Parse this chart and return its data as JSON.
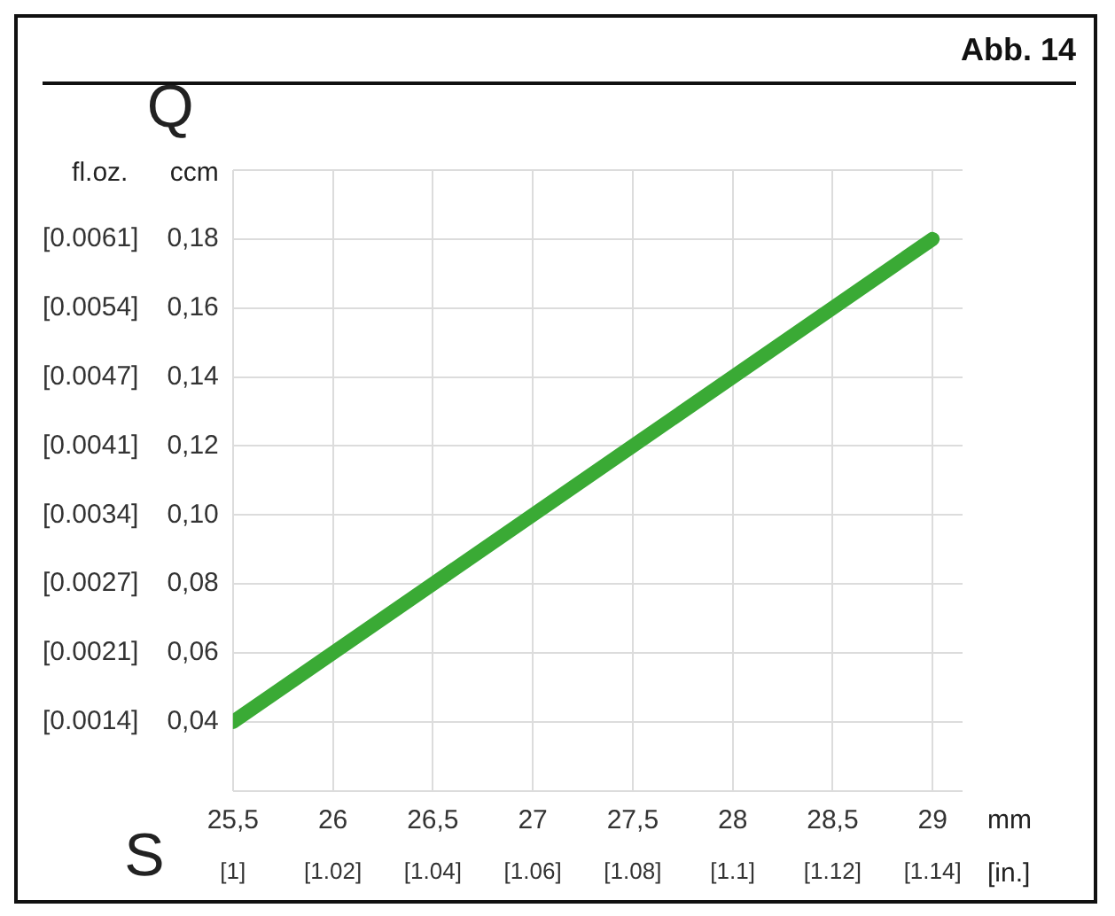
{
  "chart_data": {
    "type": "line",
    "title": "Abb. 14",
    "xlabel": "mm",
    "x2label": "[in.]",
    "ylabel": "ccm",
    "y2label": "fl.oz.",
    "annotations": [
      "Q",
      "S"
    ],
    "x": [
      25.5,
      29
    ],
    "series": [
      {
        "color": "#3aaa35",
        "values": [
          0.04,
          0.18
        ]
      }
    ],
    "xlim": [
      25.5,
      29.15
    ],
    "xticks": [
      {
        "value": 25.5,
        "label": "25,5"
      },
      26,
      {
        "value": 26.5,
        "label": "26,5"
      },
      27,
      {
        "value": 27.5,
        "label": "27,5"
      },
      28,
      {
        "value": 28.5,
        "label": "28,5"
      },
      29
    ],
    "x2lim": [
      1,
      1.146
    ],
    "x2ticks": [
      {
        "value": 1,
        "label": "[1]"
      },
      {
        "value": 1.02,
        "label": "[1.02]"
      },
      {
        "value": 1.04,
        "label": "[1.04]"
      },
      {
        "value": 1.06,
        "label": "[1.06]"
      },
      {
        "value": 1.08,
        "label": "[1.08]"
      },
      {
        "value": 1.1,
        "label": "[1.1]"
      },
      {
        "value": 1.12,
        "label": "[1.12]"
      },
      {
        "value": 1.14,
        "label": "[1.14]"
      }
    ],
    "ylim": [
      0.02,
      0.2
    ],
    "yticks": [
      {
        "value": 0.02,
        "label": null
      },
      {
        "value": 0.04,
        "label": "0,04"
      },
      {
        "value": 0.06,
        "label": "0,06"
      },
      {
        "value": 0.08,
        "label": "0,08"
      },
      {
        "value": 0.1,
        "label": "0,10"
      },
      {
        "value": 0.12,
        "label": "0,12"
      },
      {
        "value": 0.14,
        "label": "0,14"
      },
      {
        "value": 0.16,
        "label": "0,16"
      },
      {
        "value": 0.18,
        "label": "0,18"
      },
      {
        "value": 0.2,
        "label": null
      }
    ],
    "y2lim": [
      0.000722,
      0.006734
    ],
    "y2ticks": [
      {
        "value": 0.00139,
        "label": "[0.0014]"
      },
      {
        "value": 0.002058,
        "label": "[0.0021]"
      },
      {
        "value": 0.002726,
        "label": "[0.0027]"
      },
      {
        "value": 0.003394,
        "label": "[0.0034]"
      },
      {
        "value": 0.004062,
        "label": "[0.0041]"
      },
      {
        "value": 0.00473,
        "label": "[0.0047]"
      },
      {
        "value": 0.005398,
        "label": "[0.0054]"
      },
      {
        "value": 0.006066,
        "label": "[0.0061]"
      }
    ],
    "grid": true,
    "marker": "none"
  }
}
